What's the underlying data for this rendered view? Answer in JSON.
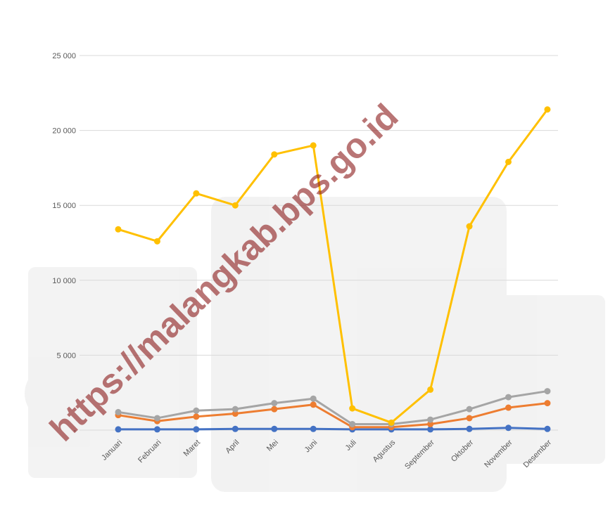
{
  "chart_data": {
    "type": "line",
    "categories": [
      "Januari",
      "Februari",
      "Maret",
      "April",
      "Mei",
      "Juni",
      "Juli",
      "Agustus",
      "September",
      "Oktober",
      "November",
      "Desember"
    ],
    "series": [
      {
        "color": "#4472c4",
        "values": [
          50,
          50,
          50,
          80,
          80,
          80,
          50,
          50,
          50,
          80,
          150,
          80
        ]
      },
      {
        "color": "#ed7d31",
        "values": [
          1000,
          600,
          900,
          1100,
          1400,
          1700,
          200,
          200,
          400,
          800,
          1500,
          1800
        ]
      },
      {
        "color": "#a5a5a5",
        "values": [
          1200,
          800,
          1300,
          1400,
          1800,
          2100,
          400,
          400,
          700,
          1400,
          2200,
          2600
        ]
      },
      {
        "color": "#ffc000",
        "values": [
          13400,
          12600,
          15800,
          15000,
          18400,
          19000,
          1450,
          500,
          2700,
          13600,
          17900,
          21400
        ]
      }
    ],
    "ylim": [
      0,
      25000
    ],
    "yticks": [
      {
        "value": 0,
        "label": "-"
      },
      {
        "value": 5000,
        "label": "5 000"
      },
      {
        "value": 10000,
        "label": "10 000"
      },
      {
        "value": 15000,
        "label": "15 000"
      },
      {
        "value": 20000,
        "label": "20 000"
      },
      {
        "value": 25000,
        "label": "25 000"
      }
    ],
    "grid": true
  },
  "watermark": "https://malangkab.bps.go.id"
}
